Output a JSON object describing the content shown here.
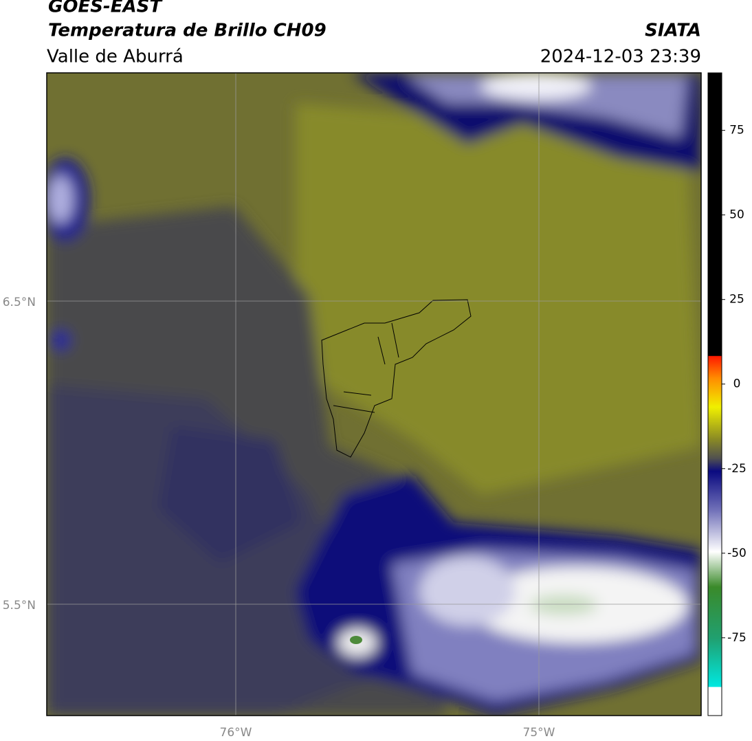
{
  "header": {
    "satellite": "GOES-EAST",
    "product": "Temperatura de Brillo CH09",
    "source": "SIATA",
    "region": "Valle de Aburrá",
    "datetime": "2024-12-03 23:39"
  },
  "map": {
    "lat_labels": [
      "6.5°N",
      "5.5°N"
    ],
    "lon_labels": [
      "76°W",
      "75°W"
    ]
  },
  "colorbar": {
    "lim": [
      -98,
      92
    ],
    "ticks": [
      75,
      50,
      25,
      0,
      -25,
      -50,
      -75
    ]
  }
}
